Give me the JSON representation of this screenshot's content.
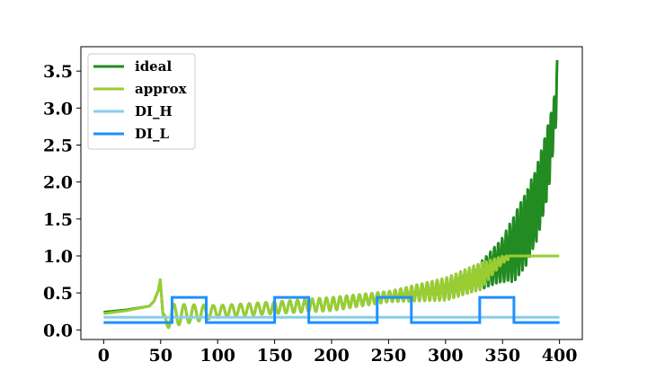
{
  "chart_data": {
    "type": "line",
    "title": "",
    "xlabel": "",
    "ylabel": "",
    "xlim": [
      -20,
      420
    ],
    "ylim": [
      -0.13,
      3.83
    ],
    "x_ticks": [
      0,
      50,
      100,
      150,
      200,
      250,
      300,
      350,
      400
    ],
    "y_ticks": [
      0.0,
      0.5,
      1.0,
      1.5,
      2.0,
      2.5,
      3.0,
      3.5
    ],
    "x_tick_labels": [
      "0",
      "50",
      "100",
      "150",
      "200",
      "250",
      "300",
      "350",
      "400"
    ],
    "y_tick_labels": [
      "0.0",
      "0.5",
      "1.0",
      "1.5",
      "2.0",
      "2.5",
      "3.0",
      "3.5"
    ],
    "grid": false,
    "legend_position": "top-left",
    "series": [
      {
        "name": "ideal",
        "color": "#228B22",
        "description_points": {
          "x": [
            0,
            20,
            40,
            48,
            50,
            52,
            60,
            100,
            150,
            200,
            250,
            300,
            330,
            350,
            360,
            370,
            380,
            390,
            395,
            398
          ],
          "y_mid": [
            0.24,
            0.27,
            0.32,
            0.45,
            0.6,
            0.1,
            0.2,
            0.25,
            0.3,
            0.35,
            0.45,
            0.55,
            0.72,
            0.95,
            1.1,
            1.35,
            1.7,
            2.3,
            2.8,
            3.3
          ],
          "y_max": [
            0.25,
            0.28,
            0.36,
            0.55,
            0.7,
            0.2,
            0.35,
            0.33,
            0.38,
            0.44,
            0.52,
            0.7,
            0.9,
            1.25,
            1.55,
            1.85,
            2.2,
            2.8,
            3.1,
            3.66
          ]
        }
      },
      {
        "name": "approx",
        "color": "#9ACD32",
        "description_points": {
          "x": [
            0,
            20,
            40,
            48,
            50,
            52,
            60,
            100,
            150,
            200,
            250,
            300,
            330,
            350,
            360,
            400
          ],
          "y_mid": [
            0.22,
            0.26,
            0.32,
            0.45,
            0.6,
            0.1,
            0.2,
            0.25,
            0.3,
            0.35,
            0.45,
            0.55,
            0.72,
            0.95,
            1.0,
            1.0
          ],
          "y_max": [
            0.24,
            0.27,
            0.36,
            0.55,
            0.7,
            0.2,
            0.35,
            0.33,
            0.38,
            0.44,
            0.52,
            0.7,
            0.9,
            1.0,
            1.0,
            1.0
          ]
        }
      },
      {
        "name": "DI_H",
        "color": "#87CEEB",
        "x": [
          0,
          400
        ],
        "y": [
          0.17,
          0.17
        ]
      },
      {
        "name": "DI_L",
        "color": "#1E90FF",
        "x": [
          0,
          60,
          60,
          90,
          90,
          150,
          150,
          180,
          180,
          240,
          240,
          270,
          270,
          330,
          330,
          360,
          360,
          400
        ],
        "y": [
          0.1,
          0.1,
          0.44,
          0.44,
          0.1,
          0.1,
          0.44,
          0.44,
          0.1,
          0.1,
          0.44,
          0.44,
          0.1,
          0.1,
          0.44,
          0.44,
          0.1,
          0.1
        ]
      }
    ]
  }
}
